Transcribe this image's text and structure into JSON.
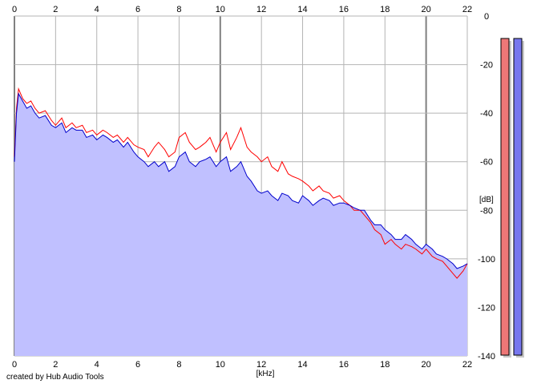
{
  "chart_data": {
    "type": "line",
    "xlabel": "[kHz]",
    "ylabel": "[dB]",
    "xlim": [
      0,
      22
    ],
    "ylim": [
      -140,
      0
    ],
    "x_ticks": [
      0,
      2,
      4,
      6,
      8,
      10,
      12,
      14,
      16,
      18,
      20,
      22
    ],
    "y_ticks": [
      0,
      -20,
      -40,
      -60,
      -80,
      -100,
      -120,
      -140
    ],
    "y_tick_labels": [
      "0",
      "-20",
      "-40",
      "-60",
      "-80",
      "-100",
      "-120",
      "-140"
    ],
    "grid": true,
    "series": [
      {
        "color": "#ff0000",
        "x": [
          0,
          0.1,
          0.2,
          0.4,
          0.6,
          0.8,
          1,
          1.2,
          1.5,
          1.8,
          2,
          2.3,
          2.5,
          2.8,
          3,
          3.3,
          3.5,
          3.8,
          4,
          4.3,
          4.5,
          4.8,
          5,
          5.3,
          5.5,
          5.8,
          6,
          6.3,
          6.5,
          6.8,
          7,
          7.3,
          7.5,
          7.8,
          8,
          8.3,
          8.5,
          8.8,
          9,
          9.3,
          9.5,
          9.8,
          10,
          10.3,
          10.5,
          10.8,
          11,
          11.3,
          11.5,
          11.8,
          12,
          12.3,
          12.5,
          12.8,
          13,
          13.3,
          13.5,
          13.8,
          14,
          14.3,
          14.5,
          14.8,
          15,
          15.3,
          15.5,
          15.8,
          16,
          16.3,
          16.5,
          16.8,
          17,
          17.3,
          17.5,
          17.8,
          18,
          18.3,
          18.5,
          18.8,
          19,
          19.3,
          19.5,
          19.8,
          20,
          20.3,
          20.5,
          20.8,
          21,
          21.3,
          21.5,
          21.8,
          22
        ],
        "values": [
          -58,
          -38,
          -30,
          -34,
          -36,
          -35,
          -38,
          -40,
          -39,
          -43,
          -45,
          -42,
          -46,
          -44,
          -46,
          -45,
          -48,
          -47,
          -49,
          -47,
          -48,
          -50,
          -49,
          -52,
          -50,
          -53,
          -54,
          -55,
          -58,
          -54,
          -52,
          -55,
          -58,
          -56,
          -50,
          -48,
          -52,
          -55,
          -54,
          -52,
          -50,
          -56,
          -52,
          -48,
          -55,
          -50,
          -46,
          -54,
          -56,
          -58,
          -60,
          -58,
          -62,
          -64,
          -60,
          -65,
          -66,
          -67,
          -68,
          -70,
          -72,
          -70,
          -72,
          -73,
          -75,
          -74,
          -76,
          -78,
          -80,
          -80,
          -82,
          -85,
          -88,
          -90,
          -94,
          -92,
          -94,
          -96,
          -94,
          -95,
          -96,
          -98,
          -96,
          -99,
          -100,
          -101,
          -103,
          -106,
          -108,
          -105,
          -102
        ]
      },
      {
        "color": "#0000cc",
        "x": [
          0,
          0.1,
          0.2,
          0.4,
          0.6,
          0.8,
          1,
          1.2,
          1.5,
          1.8,
          2,
          2.3,
          2.5,
          2.8,
          3,
          3.3,
          3.5,
          3.8,
          4,
          4.3,
          4.5,
          4.8,
          5,
          5.3,
          5.5,
          5.8,
          6,
          6.3,
          6.5,
          6.8,
          7,
          7.3,
          7.5,
          7.8,
          8,
          8.3,
          8.5,
          8.8,
          9,
          9.3,
          9.5,
          9.8,
          10,
          10.3,
          10.5,
          10.8,
          11,
          11.3,
          11.5,
          11.8,
          12,
          12.3,
          12.5,
          12.8,
          13,
          13.3,
          13.5,
          13.8,
          14,
          14.3,
          14.5,
          14.8,
          15,
          15.3,
          15.5,
          15.8,
          16,
          16.3,
          16.5,
          16.8,
          17,
          17.3,
          17.5,
          17.8,
          18,
          18.3,
          18.5,
          18.8,
          19,
          19.3,
          19.5,
          19.8,
          20,
          20.3,
          20.5,
          20.8,
          21,
          21.3,
          21.5,
          21.8,
          22
        ],
        "values": [
          -60,
          -40,
          -32,
          -35,
          -38,
          -37,
          -40,
          -42,
          -41,
          -45,
          -46,
          -44,
          -48,
          -46,
          -47,
          -47,
          -50,
          -49,
          -51,
          -49,
          -50,
          -52,
          -51,
          -54,
          -52,
          -56,
          -58,
          -60,
          -62,
          -60,
          -62,
          -60,
          -64,
          -62,
          -58,
          -56,
          -60,
          -62,
          -60,
          -59,
          -58,
          -62,
          -60,
          -58,
          -64,
          -62,
          -60,
          -66,
          -68,
          -72,
          -73,
          -72,
          -74,
          -76,
          -73,
          -74,
          -76,
          -77,
          -74,
          -76,
          -78,
          -76,
          -75,
          -76,
          -78,
          -77,
          -77,
          -78,
          -79,
          -80,
          -80,
          -84,
          -86,
          -86,
          -88,
          -90,
          -92,
          -92,
          -90,
          -92,
          -94,
          -96,
          -94,
          -96,
          -98,
          -99,
          -100,
          -102,
          -104,
          -103,
          -102
        ]
      }
    ],
    "level_meters": [
      {
        "channel": "left",
        "color": "#ee7777",
        "fill": 1.0
      },
      {
        "channel": "right",
        "color": "#7777ee",
        "fill": 1.0
      }
    ]
  },
  "footer_text": "created by Hub Audio Tools"
}
